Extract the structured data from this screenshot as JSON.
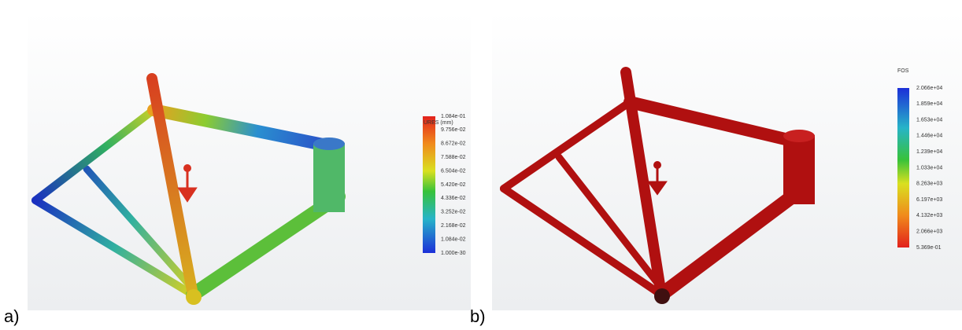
{
  "panels": [
    {
      "label": "a)",
      "legend": {
        "title": "URES (mm)",
        "ticks": [
          "1.084e-01",
          "9.756e-02",
          "8.672e-02",
          "7.588e-02",
          "6.504e-02",
          "5.420e-02",
          "4.336e-02",
          "3.252e-02",
          "2.168e-02",
          "1.084e-02",
          "1.000e-30"
        ]
      }
    },
    {
      "label": "b)",
      "legend": {
        "title": "FOS",
        "ticks": [
          "2.066e+04",
          "1.859e+04",
          "1.653e+04",
          "1.446e+04",
          "1.239e+04",
          "1.033e+04",
          "8.263e+03",
          "6.197e+03",
          "4.132e+03",
          "2.066e+03",
          "5.369e-01"
        ]
      }
    }
  ]
}
